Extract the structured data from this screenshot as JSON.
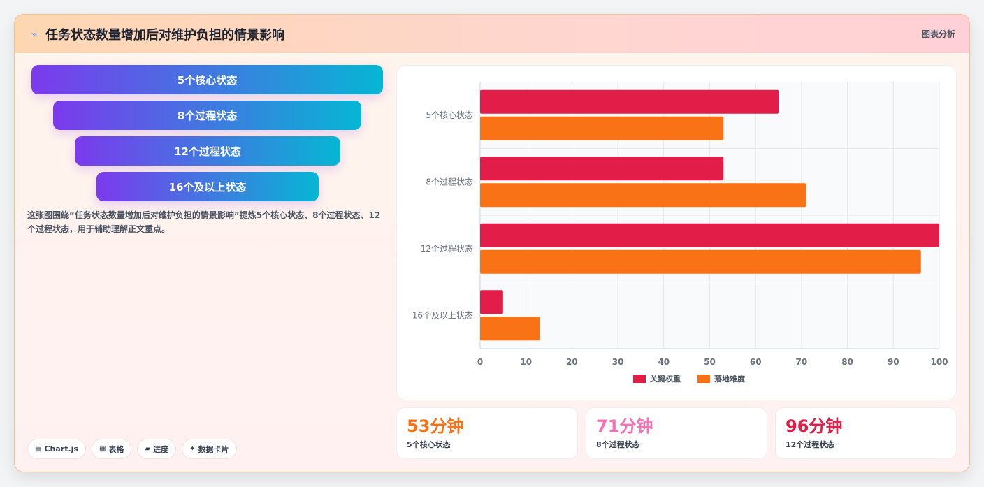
{
  "header": {
    "icon": "trend-icon",
    "title": "任务状态数量增加后对维护负担的情景影响",
    "right_label": "图表分析"
  },
  "funnel": {
    "items": [
      {
        "label": "5个核心状态"
      },
      {
        "label": "8个过程状态"
      },
      {
        "label": "12个过程状态"
      },
      {
        "label": "16个及以上状态"
      }
    ],
    "gradient": [
      "#7c3aed",
      "#06b6d4"
    ]
  },
  "description": "这张图围绕“任务状态数量增加后对维护负担的情景影响”提炼5个核心状态、8个过程状态、12个过程状态，用于辅助理解正文重点。",
  "tags": [
    {
      "icon": "chart-icon",
      "label": "Chart.js"
    },
    {
      "icon": "table-icon",
      "label": "表格"
    },
    {
      "icon": "progress-icon",
      "label": "进度"
    },
    {
      "icon": "sparkle-icon",
      "label": "数据卡片"
    }
  ],
  "chart_data": {
    "type": "bar",
    "orientation": "horizontal",
    "categories": [
      "5个核心状态",
      "8个过程状态",
      "12个过程状态",
      "16个及以上状态"
    ],
    "series": [
      {
        "name": "关键权重",
        "color": "#e11d48",
        "values": [
          65,
          53,
          100,
          5
        ]
      },
      {
        "name": "落地难度",
        "color": "#f97316",
        "values": [
          53,
          71,
          96,
          13
        ]
      }
    ],
    "xlim": [
      0,
      100
    ],
    "x_ticks": [
      "0",
      "10",
      "20",
      "30",
      "40",
      "50",
      "60",
      "70",
      "80",
      "90",
      "100"
    ],
    "grid": true,
    "legend_position": "bottom"
  },
  "kpis": [
    {
      "value": "53分钟",
      "label": "5个核心状态",
      "color": "#f97316"
    },
    {
      "value": "71分钟",
      "label": "8个过程状态",
      "color": "#f472b6"
    },
    {
      "value": "96分钟",
      "label": "12个过程状态",
      "color": "#e11d48"
    }
  ]
}
